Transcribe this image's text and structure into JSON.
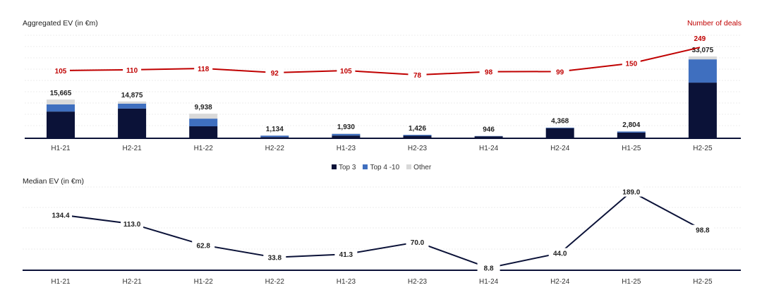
{
  "chart_data": [
    {
      "type": "bar",
      "stacked": true,
      "title": "Aggregated EV (in €m)",
      "secondary_title": "Number of deals",
      "categories": [
        "H1-21",
        "H2-21",
        "H1-22",
        "H2-22",
        "H1-23",
        "H2-23",
        "H1-24",
        "H2-24",
        "H1-25",
        "H2-25"
      ],
      "series": [
        {
          "name": "Top 3",
          "color": "#0b1238",
          "values": [
            10800,
            12000,
            4850,
            500,
            1100,
            1000,
            800,
            4100,
            2300,
            22500
          ]
        },
        {
          "name": "Top 4 -10",
          "color": "#3f6fbf",
          "values": [
            2900,
            2000,
            3100,
            600,
            700,
            400,
            120,
            200,
            450,
            9400
          ]
        },
        {
          "name": "Other",
          "color": "#d9d9d9",
          "values": [
            1965,
            875,
            1988,
            34,
            130,
            26,
            26,
            68,
            54,
            1175
          ]
        }
      ],
      "totals": [
        "15,665",
        "14,875",
        "9,938",
        "1,134",
        "1,930",
        "1,426",
        "946",
        "4,368",
        "2,804",
        "33,075"
      ],
      "line": {
        "name": "Number of deals",
        "color": "#c00000",
        "values": [
          105,
          110,
          118,
          92,
          105,
          78,
          98,
          99,
          150,
          249
        ]
      },
      "legend": "bottom-center",
      "grid": true
    },
    {
      "type": "line",
      "title": "Median EV (in €m)",
      "categories": [
        "H1-21",
        "H2-21",
        "H1-22",
        "H2-22",
        "H1-23",
        "H2-23",
        "H1-24",
        "H2-24",
        "H1-25",
        "H2-25"
      ],
      "series": [
        {
          "name": "Median EV",
          "color": "#0b1238",
          "values": [
            134.4,
            113.0,
            62.8,
            33.8,
            41.3,
            70.0,
            8.8,
            44.0,
            189.0,
            98.8
          ]
        }
      ],
      "labels": [
        "134.4",
        "113.0",
        "62.8",
        "33.8",
        "41.3",
        "70.0",
        "8.8",
        "44.0",
        "189.0",
        "98.8"
      ],
      "grid": true
    }
  ]
}
